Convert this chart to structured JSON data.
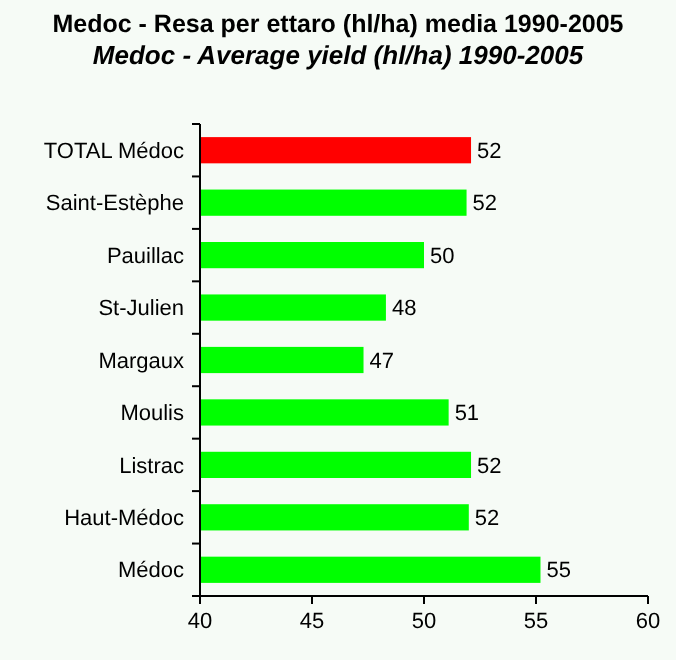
{
  "chart_data": {
    "type": "bar",
    "orientation": "horizontal",
    "title": "Medoc - Resa per ettaro (hl/ha) media 1990-2005",
    "subtitle": "Medoc - Average yield (hl/ha) 1990-2005",
    "categories": [
      "TOTAL Médoc",
      "Saint-Estèphe",
      "Pauillac",
      "St-Julien",
      "Margaux",
      "Moulis",
      "Listrac",
      "Haut-Médoc",
      "Médoc"
    ],
    "values": [
      52.1,
      51.9,
      50.0,
      48.3,
      47.3,
      51.1,
      52.1,
      52.0,
      55.2
    ],
    "value_labels": [
      "52",
      "52",
      "50",
      "48",
      "47",
      "51",
      "52",
      "52",
      "55"
    ],
    "colors": [
      "#ff0000",
      "#00ff00",
      "#00ff00",
      "#00ff00",
      "#00ff00",
      "#00ff00",
      "#00ff00",
      "#00ff00",
      "#00ff00"
    ],
    "xlim": [
      40,
      60
    ],
    "xticks": [
      40,
      45,
      50,
      55,
      60
    ]
  }
}
